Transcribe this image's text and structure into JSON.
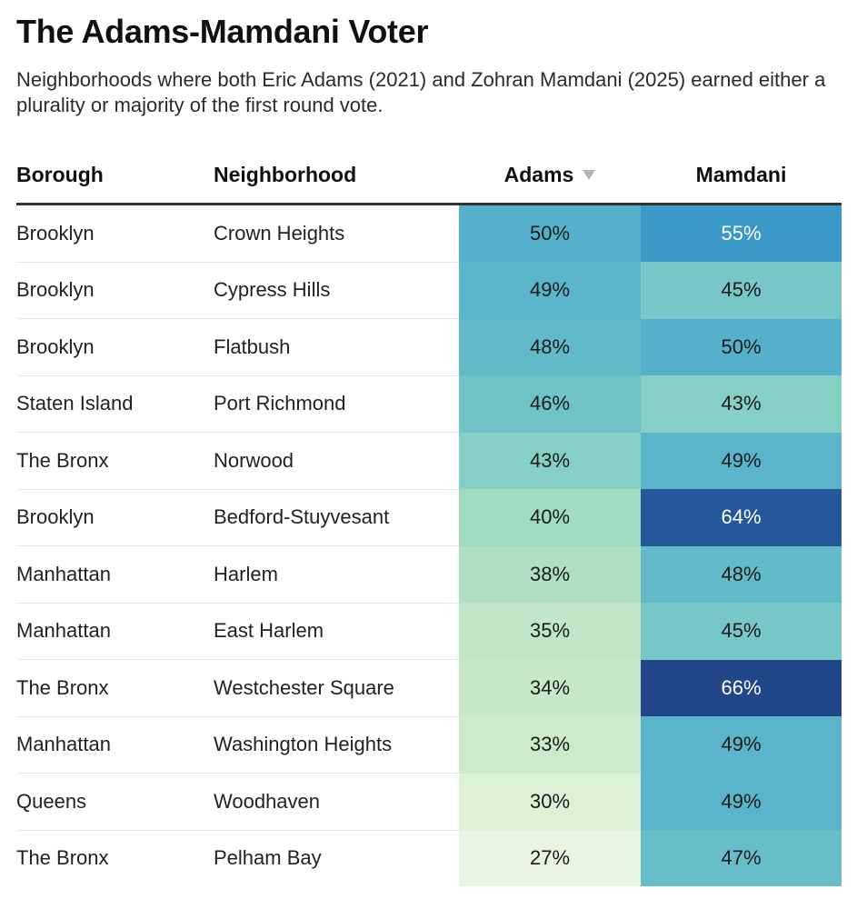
{
  "header": {
    "title": "The Adams-Mamdani Voter",
    "subtitle": "Neighborhoods where both Eric Adams (2021) and Zohran Mamdani (2025) earned either a plurality or majority of the first round vote."
  },
  "table": {
    "columns": [
      "Borough",
      "Neighborhood",
      "Adams",
      "Mamdani"
    ],
    "sort_icon": "sort-descending-icon",
    "sorted_column": "Adams"
  },
  "chart_data": {
    "type": "table",
    "title": "The Adams-Mamdani Voter",
    "columns": [
      "Borough",
      "Neighborhood",
      "Adams",
      "Mamdani"
    ],
    "rows": [
      {
        "borough": "Brooklyn",
        "neighborhood": "Crown Heights",
        "adams": "50%",
        "mamdani": "55%",
        "adams_value": 50,
        "mamdani_value": 55
      },
      {
        "borough": "Brooklyn",
        "neighborhood": "Cypress Hills",
        "adams": "49%",
        "mamdani": "45%",
        "adams_value": 49,
        "mamdani_value": 45
      },
      {
        "borough": "Brooklyn",
        "neighborhood": "Flatbush",
        "adams": "48%",
        "mamdani": "50%",
        "adams_value": 48,
        "mamdani_value": 50
      },
      {
        "borough": "Staten Island",
        "neighborhood": "Port Richmond",
        "adams": "46%",
        "mamdani": "43%",
        "adams_value": 46,
        "mamdani_value": 43
      },
      {
        "borough": "The Bronx",
        "neighborhood": "Norwood",
        "adams": "43%",
        "mamdani": "49%",
        "adams_value": 43,
        "mamdani_value": 49
      },
      {
        "borough": "Brooklyn",
        "neighborhood": "Bedford-Stuyvesant",
        "adams": "40%",
        "mamdani": "64%",
        "adams_value": 40,
        "mamdani_value": 64
      },
      {
        "borough": "Manhattan",
        "neighborhood": "Harlem",
        "adams": "38%",
        "mamdani": "48%",
        "adams_value": 38,
        "mamdani_value": 48
      },
      {
        "borough": "Manhattan",
        "neighborhood": "East Harlem",
        "adams": "35%",
        "mamdani": "45%",
        "adams_value": 35,
        "mamdani_value": 45
      },
      {
        "borough": "The Bronx",
        "neighborhood": "Westchester Square",
        "adams": "34%",
        "mamdani": "66%",
        "adams_value": 34,
        "mamdani_value": 66
      },
      {
        "borough": "Manhattan",
        "neighborhood": "Washington Heights",
        "adams": "33%",
        "mamdani": "49%",
        "adams_value": 33,
        "mamdani_value": 49
      },
      {
        "borough": "Queens",
        "neighborhood": "Woodhaven",
        "adams": "30%",
        "mamdani": "49%",
        "adams_value": 30,
        "mamdani_value": 49
      },
      {
        "borough": "The Bronx",
        "neighborhood": "Pelham Bay",
        "adams": "27%",
        "mamdani": "47%",
        "adams_value": 27,
        "mamdani_value": 47
      }
    ],
    "color_scale": {
      "stops": [
        "#f1f8e9",
        "#d4eecf",
        "#aadfc0",
        "#72c5c6",
        "#46a6cd",
        "#2b84bf",
        "#21468a"
      ],
      "domain": [
        25,
        66
      ],
      "light_text": "#ffffff",
      "dark_text": "#1a1a1a"
    }
  }
}
